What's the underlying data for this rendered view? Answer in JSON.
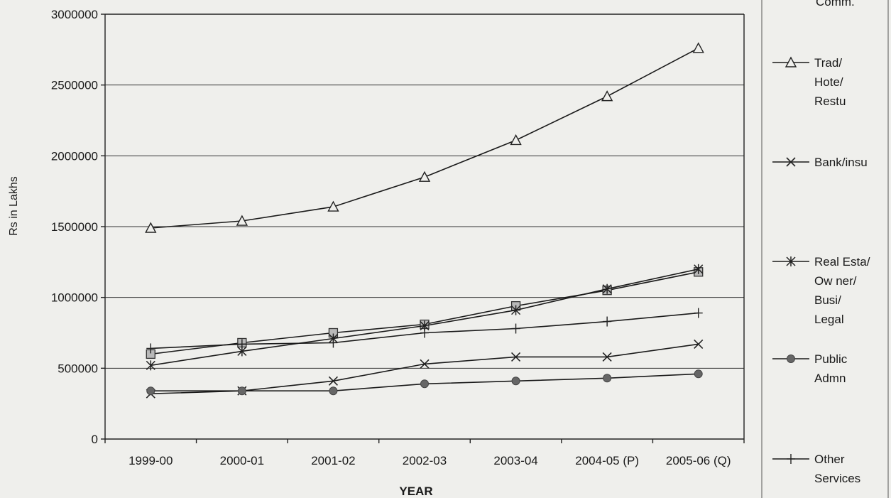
{
  "chart_data": {
    "type": "line",
    "title": "",
    "xlabel": "YEAR",
    "ylabel": "Rs in Lakhs",
    "categories": [
      "1999-00",
      "2000-01",
      "2001-02",
      "2002-03",
      "2003-04",
      "2004-05 (P)",
      "2005-06 (Q)"
    ],
    "ylim": [
      0,
      3000000
    ],
    "yticks": [
      {
        "value": 0,
        "label": "0"
      },
      {
        "value": 500000,
        "label": "500000"
      },
      {
        "value": 1000000,
        "label": "1000000"
      },
      {
        "value": 1500000,
        "label": "1500000"
      },
      {
        "value": 2000000,
        "label": "2000000"
      },
      {
        "value": 2500000,
        "label": "2500000"
      },
      {
        "value": 3000000,
        "label": "3000000"
      }
    ],
    "grid": "horizontal",
    "legend_placement": "right",
    "series": [
      {
        "name": "Comm.",
        "marker": "square",
        "values": [
          600000,
          680000,
          750000,
          810000,
          940000,
          1050000,
          1180000
        ]
      },
      {
        "name": "Trad/ Hote/ Restu",
        "legend_lines": [
          "Trad/",
          "Hote/",
          "Restu"
        ],
        "marker": "triangle",
        "values": [
          1490000,
          1540000,
          1640000,
          1850000,
          2110000,
          2420000,
          2760000
        ]
      },
      {
        "name": "Bank/insu",
        "legend_lines": [
          "Bank/insu"
        ],
        "marker": "x",
        "values": [
          320000,
          340000,
          410000,
          530000,
          580000,
          580000,
          670000
        ]
      },
      {
        "name": "Real Esta/ Ow ner/ Busi/ Legal",
        "legend_lines": [
          "Real Esta/",
          "Ow ner/",
          "Busi/",
          "Legal"
        ],
        "marker": "star",
        "values": [
          520000,
          620000,
          710000,
          800000,
          910000,
          1060000,
          1200000
        ]
      },
      {
        "name": "Public Admn",
        "legend_lines": [
          "Public",
          "Admn"
        ],
        "marker": "circle",
        "values": [
          340000,
          340000,
          340000,
          390000,
          410000,
          430000,
          460000
        ]
      },
      {
        "name": "Other Services",
        "legend_lines": [
          "Other",
          "Services"
        ],
        "marker": "plus",
        "values": [
          640000,
          670000,
          680000,
          750000,
          780000,
          830000,
          890000
        ]
      }
    ]
  }
}
